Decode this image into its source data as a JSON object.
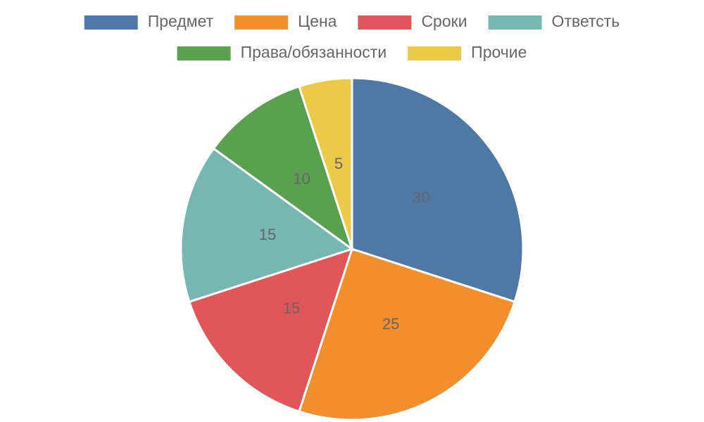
{
  "chart_data": {
    "type": "pie",
    "categories": [
      "Предмет",
      "Цена",
      "Сроки",
      "Ответсть",
      "Права/обязанности",
      "Прочие"
    ],
    "values": [
      30,
      25,
      15,
      15,
      10,
      5
    ],
    "colors": [
      "#4e79a7",
      "#f28e2b",
      "#e15759",
      "#76b7b2",
      "#59a14f",
      "#edc948"
    ]
  }
}
